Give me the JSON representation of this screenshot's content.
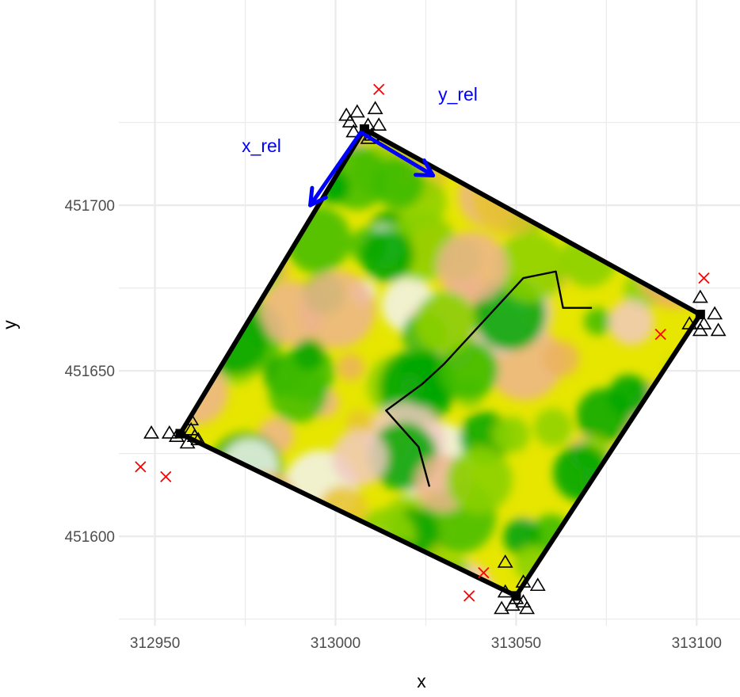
{
  "chart_data": {
    "type": "scatter",
    "title": "",
    "xlabel": "x",
    "ylabel": "y",
    "xlim": [
      312940,
      313112
    ],
    "ylim": [
      451573,
      451762
    ],
    "x_ticks": [
      312950,
      313000,
      313050,
      313100
    ],
    "y_ticks": [
      451600,
      451650,
      451700
    ],
    "x_tick_labels": [
      "312950",
      "313000",
      "313050",
      "313100"
    ],
    "y_tick_labels": [
      "451600",
      "451650",
      "451700"
    ],
    "grid": true,
    "legend": "none",
    "raster": {
      "description": "vegetation raster clipped to plot square",
      "palette": [
        "#00a600",
        "#3ebb00",
        "#8bd000",
        "#e6e600",
        "#e8c32e",
        "#ebb25e",
        "#edb48e",
        "#f0c9c0",
        "#f2f2f2"
      ]
    },
    "plot_boundary": {
      "corners": [
        {
          "x": 313008,
          "y": 451723
        },
        {
          "x": 313101,
          "y": 451667
        },
        {
          "x": 313050,
          "y": 451582
        },
        {
          "x": 312957,
          "y": 451631
        }
      ],
      "color": "#000000"
    },
    "corner_markers": [
      {
        "x": 313008,
        "y": 451723
      },
      {
        "x": 313101,
        "y": 451667
      },
      {
        "x": 313050,
        "y": 451582
      },
      {
        "x": 312957,
        "y": 451631
      }
    ],
    "triangle_points": [
      {
        "x": 313003,
        "y": 451727
      },
      {
        "x": 313006,
        "y": 451728
      },
      {
        "x": 313011,
        "y": 451729
      },
      {
        "x": 313004,
        "y": 451725
      },
      {
        "x": 313009,
        "y": 451724
      },
      {
        "x": 313012,
        "y": 451724
      },
      {
        "x": 313005,
        "y": 451722
      },
      {
        "x": 313010,
        "y": 451721
      },
      {
        "x": 313009,
        "y": 451720
      },
      {
        "x": 313101,
        "y": 451672
      },
      {
        "x": 313105,
        "y": 451667
      },
      {
        "x": 313098,
        "y": 451664
      },
      {
        "x": 313102,
        "y": 451664
      },
      {
        "x": 313101,
        "y": 451662
      },
      {
        "x": 313106,
        "y": 451662
      },
      {
        "x": 312949,
        "y": 451631
      },
      {
        "x": 312954,
        "y": 451631
      },
      {
        "x": 312956,
        "y": 451630
      },
      {
        "x": 312960,
        "y": 451635
      },
      {
        "x": 312960,
        "y": 451632
      },
      {
        "x": 312961,
        "y": 451630
      },
      {
        "x": 312962,
        "y": 451629
      },
      {
        "x": 312959,
        "y": 451628
      },
      {
        "x": 313047,
        "y": 451592
      },
      {
        "x": 313052,
        "y": 451586
      },
      {
        "x": 313056,
        "y": 451585
      },
      {
        "x": 313047,
        "y": 451583
      },
      {
        "x": 313050,
        "y": 451581
      },
      {
        "x": 313052,
        "y": 451580
      },
      {
        "x": 313049,
        "y": 451579
      },
      {
        "x": 313046,
        "y": 451578
      },
      {
        "x": 313053,
        "y": 451578
      }
    ],
    "cross_points": [
      {
        "x": 313012,
        "y": 451735
      },
      {
        "x": 313102,
        "y": 451678
      },
      {
        "x": 313090,
        "y": 451661
      },
      {
        "x": 312946,
        "y": 451621
      },
      {
        "x": 312953,
        "y": 451618
      },
      {
        "x": 313041,
        "y": 451589
      },
      {
        "x": 313037,
        "y": 451582
      }
    ],
    "path_line": [
      {
        "x": 313026,
        "y": 451615
      },
      {
        "x": 313023,
        "y": 451627
      },
      {
        "x": 313014,
        "y": 451638
      },
      {
        "x": 313024,
        "y": 451646
      },
      {
        "x": 313030,
        "y": 451652
      },
      {
        "x": 313052,
        "y": 451678
      },
      {
        "x": 313061,
        "y": 451680
      },
      {
        "x": 313063,
        "y": 451669
      },
      {
        "x": 313071,
        "y": 451669
      }
    ],
    "arrows": [
      {
        "label": "x_rel",
        "from": {
          "x": 313007,
          "y": 451722
        },
        "to": {
          "x": 312993,
          "y": 451700
        },
        "color": "#0000ff"
      },
      {
        "label": "y_rel",
        "from": {
          "x": 313007,
          "y": 451722
        },
        "to": {
          "x": 313027,
          "y": 451709
        },
        "color": "#0000ff"
      }
    ],
    "colors": {
      "boundary": "#000000",
      "cross": "#ff0000",
      "arrow": "#0000ff",
      "grid": "#ebebeb",
      "path": "#000000"
    }
  }
}
